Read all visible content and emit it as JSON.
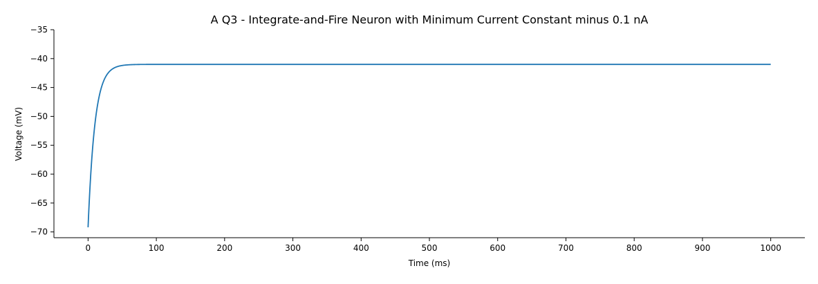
{
  "chart_data": {
    "type": "line",
    "title": "A Q3 - Integrate-and-Fire Neuron with Minimum Current Constant minus 0.1 nA",
    "xlabel": "Time (ms)",
    "ylabel": "Voltage (mV)",
    "xlim": [
      -50,
      1050
    ],
    "ylim": [
      -71,
      -35
    ],
    "xticks": [
      0,
      100,
      200,
      300,
      400,
      500,
      600,
      700,
      800,
      900,
      1000
    ],
    "xtick_labels": [
      "0",
      "100",
      "200",
      "300",
      "400",
      "500",
      "600",
      "700",
      "800",
      "900",
      "1000"
    ],
    "yticks": [
      -70,
      -65,
      -60,
      -55,
      -50,
      -45,
      -40,
      -35
    ],
    "ytick_labels": [
      "−70",
      "−65",
      "−60",
      "−55",
      "−50",
      "−45",
      "−40",
      "−35"
    ],
    "grid": false,
    "series": [
      {
        "color": "#1f77b4",
        "model": "exponential_approach",
        "v_start": -69.2,
        "v_final": -41.0,
        "tau_ms": 10,
        "x_range": [
          0,
          1000
        ],
        "x_step": 0.5
      }
    ]
  }
}
